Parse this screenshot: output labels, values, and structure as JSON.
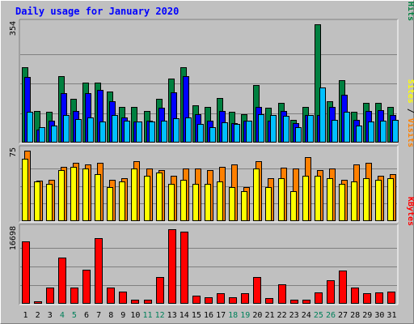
{
  "chart_data": {
    "type": "bar",
    "title": "Daily usage for January 2020",
    "categories": [
      "1",
      "2",
      "3",
      "4",
      "5",
      "6",
      "7",
      "8",
      "9",
      "10",
      "11",
      "12",
      "13",
      "14",
      "15",
      "16",
      "17",
      "18",
      "19",
      "20",
      "21",
      "22",
      "23",
      "24",
      "25",
      "26",
      "27",
      "28",
      "29",
      "30",
      "31"
    ],
    "weekend_days": [
      "4",
      "5",
      "11",
      "12",
      "18",
      "19",
      "25",
      "26"
    ],
    "panels": [
      {
        "name": "hits-files-pages",
        "ylim": [
          0,
          354
        ],
        "max_label": "354",
        "legend_words": [
          "Pages",
          "Files",
          "Hits"
        ],
        "series": [
          {
            "name": "Hits",
            "color": "#008040",
            "values": [
              225,
              94,
              92,
              200,
              132,
              180,
              180,
              152,
              106,
              106,
              95,
              130,
              192,
              225,
              112,
              106,
              134,
              92,
              86,
              171,
              104,
              118,
              69,
              106,
              354,
              123,
              186,
              92,
              118,
              118,
              106
            ]
          },
          {
            "name": "Files",
            "color": "#0000ff",
            "values": [
              196,
              40,
              66,
              148,
              94,
              149,
              157,
              124,
              75,
              62,
              66,
              105,
              150,
              200,
              86,
              65,
              94,
              58,
              66,
              106,
              66,
              94,
              57,
              82,
              82,
              106,
              143,
              67,
              94,
              98,
              82
            ]
          },
          {
            "name": "Pages",
            "color": "#00c0ff",
            "values": [
              92,
              46,
              50,
              82,
              70,
              76,
              62,
              82,
              66,
              62,
              62,
              66,
              72,
              75,
              55,
              45,
              60,
              55,
              66,
              84,
              82,
              80,
              46,
              82,
              164,
              68,
              92,
              52,
              62,
              66,
              68
            ]
          }
        ]
      },
      {
        "name": "visits-sites",
        "ylim": [
          0,
          75
        ],
        "max_label": "75",
        "legend_words": [
          "Sites",
          "Visits"
        ],
        "series": [
          {
            "name": "Visits",
            "color": "#ff8000",
            "values": [
              75,
              43,
              44,
              58,
              62,
              60,
              62,
              44,
              46,
              64,
              56,
              54,
              48,
              56,
              56,
              54,
              58,
              60,
              36,
              64,
              46,
              57,
              56,
              68,
              54,
              56,
              44,
              60,
              62,
              48,
              50
            ]
          },
          {
            "name": "Sites",
            "color": "#ffff00",
            "values": [
              66,
              42,
              40,
              54,
              58,
              56,
              50,
              36,
              42,
              56,
              48,
              52,
              40,
              44,
              40,
              40,
              42,
              36,
              32,
              56,
              36,
              46,
              32,
              48,
              48,
              46,
              40,
              42,
              46,
              44,
              46
            ]
          }
        ]
      },
      {
        "name": "kbytes",
        "ylim": [
          0,
          16698
        ],
        "max_label": "16698",
        "legend_words": [
          "KBytes"
        ],
        "series": [
          {
            "name": "KBytes",
            "color": "#ff0000",
            "values": [
              13960,
              510,
              3700,
              10300,
              3700,
              7600,
              14700,
              3600,
              2750,
              970,
              970,
              5900,
              16698,
              16100,
              1870,
              1460,
              2450,
              1380,
              2450,
              6000,
              1200,
              4400,
              970,
              970,
              2600,
              5300,
              7500,
              3550,
              2450,
              2600,
              2650
            ]
          }
        ]
      }
    ]
  }
}
